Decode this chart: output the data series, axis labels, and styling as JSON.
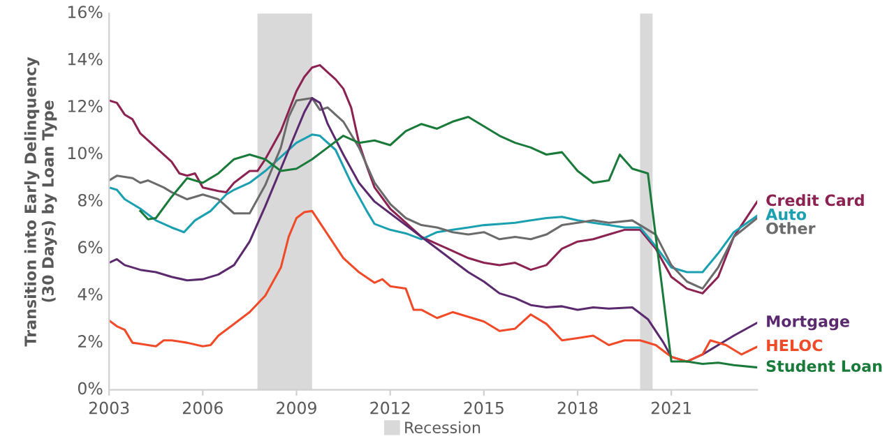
{
  "chart_data": {
    "type": "line",
    "ylabel": "Transition into Early Delinquency\n(30 Days) by Loan Type",
    "xlim": [
      2003,
      2023.75
    ],
    "xticks": [
      2003,
      2006,
      2009,
      2012,
      2015,
      2018,
      2021
    ],
    "ylim": [
      0,
      16
    ],
    "yticks": [
      {
        "value": 0,
        "label": "0%"
      },
      {
        "value": 2,
        "label": "2%"
      },
      {
        "value": 4,
        "label": "4%"
      },
      {
        "value": 6,
        "label": "6%"
      },
      {
        "value": 8,
        "label": "8%"
      },
      {
        "value": 10,
        "label": "10%"
      },
      {
        "value": 12,
        "label": "12%"
      },
      {
        "value": 14,
        "label": "14%"
      },
      {
        "value": 16,
        "label": "16%"
      }
    ],
    "grid": false,
    "legend": "bottom",
    "marker": "none",
    "line_style": "solid",
    "bands": [
      {
        "axis": "x",
        "from": 2007.75,
        "to": 2009.5,
        "label": "Recession",
        "color": "#d9d9d9"
      },
      {
        "axis": "x",
        "from": 2020.0,
        "to": 2020.4,
        "color": "#d9d9d9"
      }
    ],
    "series": [
      {
        "name": "Credit Card",
        "color": "#8b2252",
        "x": [
          2003,
          2003.25,
          2003.5,
          2003.75,
          2004,
          2004.5,
          2005,
          2005.25,
          2005.5,
          2005.75,
          2006,
          2006.5,
          2006.75,
          2007,
          2007.5,
          2007.75,
          2008,
          2008.5,
          2009,
          2009.25,
          2009.5,
          2009.75,
          2010,
          2010.25,
          2010.5,
          2010.75,
          2011,
          2011.25,
          2011.5,
          2012,
          2012.5,
          2013,
          2013.5,
          2014,
          2014.5,
          2015,
          2015.5,
          2016,
          2016.5,
          2017,
          2017.5,
          2018,
          2018.5,
          2019,
          2019.5,
          2020,
          2020.5,
          2021,
          2021.5,
          2022,
          2022.5,
          2023,
          2023.75
        ],
        "values": [
          12.3,
          12.2,
          11.7,
          11.5,
          10.9,
          10.3,
          9.7,
          9.2,
          9.1,
          9.2,
          8.6,
          8.45,
          8.4,
          8.8,
          9.3,
          9.3,
          9.8,
          11.0,
          12.7,
          13.3,
          13.7,
          13.8,
          13.5,
          13.2,
          12.8,
          12.0,
          10.5,
          9.5,
          8.6,
          7.7,
          7.1,
          6.5,
          6.2,
          5.9,
          5.6,
          5.4,
          5.3,
          5.4,
          5.1,
          5.3,
          6.0,
          6.3,
          6.4,
          6.6,
          6.8,
          6.8,
          6.0,
          4.8,
          4.3,
          4.1,
          4.8,
          6.5,
          8.0
        ]
      },
      {
        "name": "Auto",
        "color": "#1aa0b0",
        "x": [
          2003,
          2003.25,
          2003.5,
          2004,
          2004.5,
          2005,
          2005.4,
          2005.75,
          2006.25,
          2006.75,
          2007,
          2007.5,
          2008,
          2008.5,
          2009,
          2009.5,
          2009.75,
          2010.25,
          2010.75,
          2011.25,
          2011.5,
          2012,
          2012.5,
          2013,
          2013.5,
          2014,
          2014.5,
          2015,
          2015.5,
          2016,
          2016.5,
          2017,
          2017.5,
          2018,
          2018.5,
          2019,
          2019.5,
          2020,
          2020.5,
          2021,
          2021.5,
          2022,
          2022.5,
          2023,
          2023.75
        ],
        "values": [
          8.6,
          8.5,
          8.1,
          7.7,
          7.2,
          6.9,
          6.7,
          7.2,
          7.6,
          8.3,
          8.5,
          8.8,
          9.3,
          9.9,
          10.5,
          10.85,
          10.8,
          10.2,
          8.8,
          7.6,
          7.05,
          6.8,
          6.65,
          6.4,
          6.7,
          6.8,
          6.9,
          7.0,
          7.05,
          7.1,
          7.2,
          7.3,
          7.35,
          7.2,
          7.1,
          7.0,
          6.9,
          6.9,
          6.1,
          5.2,
          5.0,
          5.0,
          5.8,
          6.7,
          7.4
        ]
      },
      {
        "name": "Other",
        "color": "#6b6b6b",
        "x": [
          2003,
          2003.25,
          2003.75,
          2004,
          2004.25,
          2004.75,
          2005,
          2005.5,
          2006,
          2006.5,
          2007,
          2007.5,
          2008,
          2008.5,
          2008.75,
          2009,
          2009.5,
          2009.75,
          2010,
          2010.5,
          2011,
          2011.5,
          2012,
          2012.5,
          2013,
          2013.5,
          2014,
          2014.5,
          2015,
          2015.5,
          2016,
          2016.5,
          2017,
          2017.5,
          2018,
          2018.5,
          2019,
          2019.75,
          2020.25,
          2020.5,
          2021,
          2021.5,
          2022,
          2022.5,
          2023,
          2023.75
        ],
        "values": [
          8.9,
          9.1,
          9.0,
          8.8,
          8.9,
          8.6,
          8.4,
          8.1,
          8.3,
          8.1,
          7.5,
          7.5,
          8.7,
          10.3,
          11.6,
          12.3,
          12.4,
          11.9,
          12.0,
          11.4,
          10.3,
          8.8,
          7.9,
          7.3,
          7.0,
          6.9,
          6.7,
          6.6,
          6.7,
          6.4,
          6.5,
          6.4,
          6.6,
          7.0,
          7.1,
          7.2,
          7.1,
          7.2,
          6.8,
          6.6,
          5.3,
          4.6,
          4.3,
          5.2,
          6.5,
          7.3
        ]
      },
      {
        "name": "Mortgage",
        "color": "#5b2a6e",
        "x": [
          2003,
          2003.25,
          2003.5,
          2004,
          2004.5,
          2005,
          2005.5,
          2006,
          2006.5,
          2007,
          2007.5,
          2008,
          2008.5,
          2009,
          2009.25,
          2009.5,
          2009.75,
          2010,
          2010.5,
          2011,
          2011.5,
          2012,
          2012.5,
          2013,
          2013.5,
          2014,
          2014.5,
          2015,
          2015.5,
          2016,
          2016.5,
          2017,
          2017.5,
          2018,
          2018.5,
          2019,
          2019.75,
          2020.25,
          2020.75,
          2021,
          2021.5,
          2022,
          2022.5,
          2023,
          2023.75
        ],
        "values": [
          5.4,
          5.55,
          5.3,
          5.1,
          5.0,
          4.8,
          4.65,
          4.7,
          4.9,
          5.3,
          6.3,
          7.8,
          9.4,
          11.0,
          11.8,
          12.4,
          12.2,
          11.3,
          10.0,
          8.8,
          8.0,
          7.5,
          7.0,
          6.5,
          6.0,
          5.5,
          5.0,
          4.6,
          4.1,
          3.9,
          3.6,
          3.5,
          3.55,
          3.4,
          3.5,
          3.45,
          3.5,
          3.0,
          2.0,
          1.4,
          1.2,
          1.5,
          1.9,
          2.3,
          2.85
        ]
      },
      {
        "name": "HELOC",
        "color": "#f04a28",
        "x": [
          2003,
          2003.25,
          2003.5,
          2003.75,
          2004,
          2004.5,
          2004.75,
          2005,
          2005.5,
          2006,
          2006.25,
          2006.5,
          2007,
          2007.5,
          2008,
          2008.5,
          2008.75,
          2009,
          2009.25,
          2009.5,
          2010,
          2010.5,
          2011,
          2011.5,
          2011.75,
          2012,
          2012.5,
          2012.75,
          2013,
          2013.5,
          2014,
          2014.5,
          2015,
          2015.5,
          2016,
          2016.5,
          2017,
          2017.5,
          2018,
          2018.5,
          2019,
          2019.5,
          2020,
          2020.5,
          2021,
          2021.5,
          2022,
          2022.25,
          2022.75,
          2023.25,
          2023.75
        ],
        "values": [
          2.95,
          2.7,
          2.55,
          2.0,
          1.95,
          1.85,
          2.1,
          2.1,
          2.0,
          1.85,
          1.9,
          2.3,
          2.8,
          3.3,
          4.0,
          5.2,
          6.5,
          7.3,
          7.55,
          7.6,
          6.6,
          5.6,
          5.0,
          4.55,
          4.7,
          4.4,
          4.3,
          3.4,
          3.4,
          3.05,
          3.3,
          3.1,
          2.9,
          2.5,
          2.6,
          3.2,
          2.8,
          2.1,
          2.2,
          2.3,
          1.9,
          2.1,
          2.1,
          1.9,
          1.4,
          1.2,
          1.5,
          2.1,
          1.9,
          1.5,
          1.83
        ]
      },
      {
        "name": "Student Loan",
        "color": "#1a7a3a",
        "x": [
          2004,
          2004.25,
          2004.5,
          2005,
          2005.5,
          2006,
          2006.5,
          2007,
          2007.5,
          2008,
          2008.5,
          2009,
          2009.5,
          2010,
          2010.5,
          2011,
          2011.5,
          2012,
          2012.5,
          2013,
          2013.5,
          2014,
          2014.5,
          2015,
          2015.5,
          2016,
          2016.5,
          2017,
          2017.5,
          2018,
          2018.5,
          2019,
          2019.35,
          2019.75,
          2020.25,
          2021,
          2021.5,
          2022,
          2022.5,
          2023,
          2023.75
        ],
        "values": [
          7.6,
          7.25,
          7.3,
          8.2,
          9.0,
          8.8,
          9.2,
          9.8,
          10.0,
          9.8,
          9.3,
          9.4,
          9.8,
          10.3,
          10.8,
          10.5,
          10.6,
          10.4,
          11.0,
          11.3,
          11.1,
          11.4,
          11.6,
          11.2,
          10.8,
          10.5,
          10.3,
          10.0,
          10.1,
          9.3,
          8.8,
          8.9,
          10.0,
          9.4,
          9.2,
          1.2,
          1.2,
          1.1,
          1.15,
          1.05,
          0.95
        ]
      }
    ]
  }
}
